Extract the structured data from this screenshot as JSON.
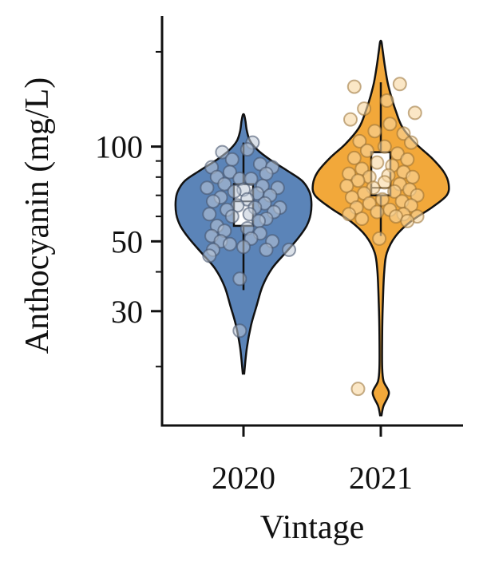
{
  "chart_data": {
    "type": "violin",
    "title": "",
    "xlabel": "Vintage",
    "ylabel": "Anthocyanin (mg/L)",
    "y_scale": "log",
    "ylim": [
      13,
      260
    ],
    "y_ticks": [
      {
        "value": 30,
        "label": "30"
      },
      {
        "value": 50,
        "label": "50"
      },
      {
        "value": 100,
        "label": "100"
      }
    ],
    "y_minor_ticks": [
      20,
      40,
      60,
      70,
      80,
      90,
      200
    ],
    "categories": [
      "2020",
      "2021"
    ],
    "colors": {
      "2020": "#5b84b8",
      "2021": "#f2a83a",
      "outline": "#111111"
    },
    "series": [
      {
        "category": "2020",
        "color": "#5b84b8",
        "violin": {
          "profile": [
            [
              19,
              0.01
            ],
            [
              23,
              0.05
            ],
            [
              27,
              0.11
            ],
            [
              31,
              0.19
            ],
            [
              36,
              0.28
            ],
            [
              41,
              0.42
            ],
            [
              46,
              0.62
            ],
            [
              51,
              0.8
            ],
            [
              56,
              0.93
            ],
            [
              61,
              0.99
            ],
            [
              67,
              1.0
            ],
            [
              72,
              0.97
            ],
            [
              78,
              0.86
            ],
            [
              84,
              0.64
            ],
            [
              90,
              0.42
            ],
            [
              97,
              0.22
            ],
            [
              104,
              0.1
            ],
            [
              112,
              0.05
            ],
            [
              120,
              0.03
            ],
            [
              126,
              0.01
            ]
          ]
        },
        "box": {
          "q1": 56,
          "median": 67,
          "q3": 76,
          "whisker_low": 35,
          "whisker_high": 103
        },
        "points": [
          [
            0.12,
            103
          ],
          [
            0.05,
            98
          ],
          [
            -0.28,
            96
          ],
          [
            -0.15,
            91
          ],
          [
            0.22,
            88
          ],
          [
            -0.42,
            86
          ],
          [
            0.38,
            86
          ],
          [
            -0.18,
            83
          ],
          [
            0.3,
            82
          ],
          [
            -0.35,
            80
          ],
          [
            -0.05,
            79
          ],
          [
            0.1,
            79
          ],
          [
            -0.25,
            76
          ],
          [
            0.25,
            75
          ],
          [
            -0.48,
            74
          ],
          [
            0.45,
            74
          ],
          [
            0.0,
            73
          ],
          [
            -0.12,
            72
          ],
          [
            0.18,
            71
          ],
          [
            0.35,
            70
          ],
          [
            -0.3,
            69
          ],
          [
            0.05,
            68
          ],
          [
            -0.4,
            67
          ],
          [
            0.28,
            66
          ],
          [
            -0.08,
            65
          ],
          [
            0.15,
            64
          ],
          [
            0.48,
            64
          ],
          [
            -0.22,
            63
          ],
          [
            0.4,
            62
          ],
          [
            0.08,
            61
          ],
          [
            -0.45,
            61
          ],
          [
            -0.15,
            60
          ],
          [
            0.3,
            59
          ],
          [
            0.2,
            58
          ],
          [
            -0.35,
            56
          ],
          [
            0.05,
            55
          ],
          [
            -0.25,
            54
          ],
          [
            0.22,
            53
          ],
          [
            -0.42,
            52
          ],
          [
            0.1,
            51
          ],
          [
            -0.3,
            50
          ],
          [
            0.38,
            50
          ],
          [
            -0.18,
            49
          ],
          [
            0.0,
            48
          ],
          [
            0.3,
            47
          ],
          [
            -0.4,
            47
          ],
          [
            0.6,
            47
          ],
          [
            -0.45,
            45
          ],
          [
            -0.05,
            38
          ],
          [
            -0.05,
            26
          ]
        ]
      },
      {
        "category": "2021",
        "color": "#f2a83a",
        "violin": {
          "profile": [
            [
              14,
              0.01
            ],
            [
              15,
              0.04
            ],
            [
              16.5,
              0.12
            ],
            [
              18,
              0.04
            ],
            [
              20,
              0.02
            ],
            [
              25,
              0.02
            ],
            [
              32,
              0.03
            ],
            [
              40,
              0.05
            ],
            [
              46,
              0.09
            ],
            [
              52,
              0.22
            ],
            [
              58,
              0.45
            ],
            [
              64,
              0.75
            ],
            [
              70,
              0.97
            ],
            [
              76,
              1.0
            ],
            [
              83,
              0.93
            ],
            [
              92,
              0.75
            ],
            [
              102,
              0.52
            ],
            [
              115,
              0.32
            ],
            [
              130,
              0.22
            ],
            [
              145,
              0.15
            ],
            [
              160,
              0.1
            ],
            [
              180,
              0.06
            ],
            [
              200,
              0.03
            ],
            [
              215,
              0.01
            ]
          ]
        },
        "box": {
          "q1": 70,
          "median": 74,
          "q3": 96,
          "whisker_low": 52,
          "whisker_high": 160
        },
        "points": [
          [
            -0.35,
            155
          ],
          [
            0.25,
            158
          ],
          [
            0.08,
            140
          ],
          [
            -0.22,
            132
          ],
          [
            0.45,
            128
          ],
          [
            -0.4,
            122
          ],
          [
            0.12,
            118
          ],
          [
            -0.08,
            112
          ],
          [
            0.3,
            110
          ],
          [
            -0.28,
            104
          ],
          [
            0.4,
            103
          ],
          [
            0.05,
            100
          ],
          [
            -0.18,
            97
          ],
          [
            0.22,
            95
          ],
          [
            -0.35,
            92
          ],
          [
            0.35,
            91
          ],
          [
            -0.05,
            89
          ],
          [
            0.15,
            87
          ],
          [
            -0.25,
            85
          ],
          [
            0.3,
            83
          ],
          [
            -0.42,
            82
          ],
          [
            0.1,
            81
          ],
          [
            -0.15,
            80
          ],
          [
            0.42,
            80
          ],
          [
            -0.3,
            78
          ],
          [
            0.05,
            77
          ],
          [
            0.25,
            76
          ],
          [
            -0.45,
            75
          ],
          [
            -0.1,
            74
          ],
          [
            0.38,
            73
          ],
          [
            0.18,
            72
          ],
          [
            -0.22,
            71
          ],
          [
            0.48,
            70
          ],
          [
            -0.38,
            69
          ],
          [
            0.02,
            68
          ],
          [
            0.28,
            67
          ],
          [
            -0.15,
            66
          ],
          [
            0.4,
            65
          ],
          [
            -0.32,
            64
          ],
          [
            0.12,
            63
          ],
          [
            -0.05,
            62
          ],
          [
            0.3,
            61
          ],
          [
            -0.42,
            61
          ],
          [
            0.2,
            60
          ],
          [
            -0.25,
            59
          ],
          [
            0.48,
            60
          ],
          [
            0.35,
            58
          ],
          [
            -0.02,
            51
          ],
          [
            -0.3,
            17
          ]
        ]
      }
    ]
  }
}
